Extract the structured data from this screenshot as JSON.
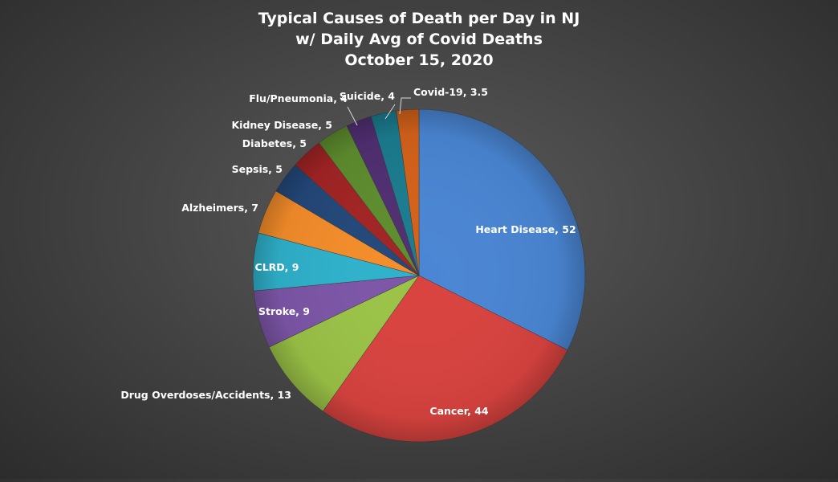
{
  "chart_data": {
    "type": "pie",
    "title": [
      "Typical  Causes  of Death  per  Day  in  NJ",
      "w/  Daily  Avg  of  Covid  Deaths",
      "October  15,  2020"
    ],
    "legend": "none",
    "categories": [
      "Heart Disease",
      "Cancer",
      "Drug Overdoses/Accidents",
      "Stroke",
      "CLRD",
      "Alzheimers",
      "Sepsis",
      "Diabetes",
      "Kidney Disease",
      "Flu/Pneumonia",
      "Suicide",
      "Covid-19"
    ],
    "values": [
      52,
      44,
      13,
      9,
      9,
      7,
      5,
      5,
      5,
      4,
      4,
      3.5
    ],
    "data_labels": [
      "Heart Disease, 52",
      "Cancer, 44",
      "Drug Overdoses/Accidents, 13",
      "Stroke, 9",
      "CLRD, 9",
      "Alzheimers, 7",
      "Sepsis, 5",
      "Diabetes, 5",
      "Kidney Disease, 5",
      "Flu/Pneumonia, 4",
      "Suicide, 4",
      "Covid-19, 3.5"
    ],
    "colors": [
      "#4a86d4",
      "#d9433f",
      "#9bc347",
      "#7d56a8",
      "#2fb2cc",
      "#f58d2a",
      "#23487a",
      "#a32424",
      "#5e8d2e",
      "#512f72",
      "#1b7c90",
      "#d4621a"
    ]
  }
}
